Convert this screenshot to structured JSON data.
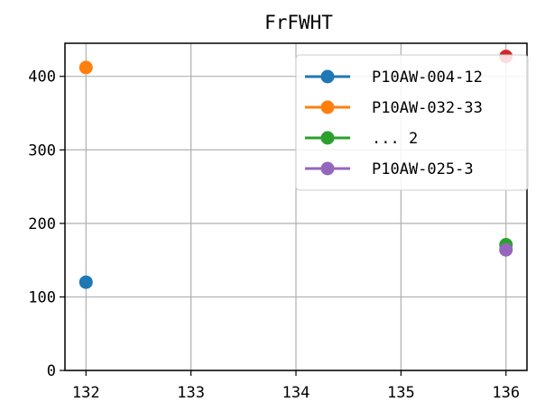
{
  "chart_data": {
    "type": "line",
    "title": "FrFWHT",
    "xlabel": "",
    "ylabel": "",
    "xlim": [
      131.8,
      136.2
    ],
    "ylim": [
      0,
      445
    ],
    "xticks": [
      132,
      133,
      134,
      135,
      136
    ],
    "xtick_labels": [
      "132",
      "133",
      "134",
      "135",
      "136"
    ],
    "yticks": [
      0,
      100,
      200,
      300,
      400
    ],
    "ytick_labels": [
      "0",
      "100",
      "200",
      "300",
      "400"
    ],
    "grid": true,
    "legend_position": "top-right",
    "series": [
      {
        "name": "P10AW-004-12",
        "color": "#1f77b4",
        "points": [
          [
            132,
            120
          ]
        ]
      },
      {
        "name": "P10AW-032-33",
        "color": "#ff7f0e",
        "points": [
          [
            132,
            412
          ]
        ]
      },
      {
        "name": "... 2",
        "color": "#2ca02c",
        "points": [
          [
            136,
            171
          ]
        ]
      },
      {
        "name": "P10AW-025-3",
        "color": "#9467bd",
        "points": [
          [
            136,
            164
          ]
        ]
      },
      {
        "name": "",
        "color": "#d62728",
        "points": [
          [
            136,
            427
          ]
        ]
      }
    ]
  }
}
